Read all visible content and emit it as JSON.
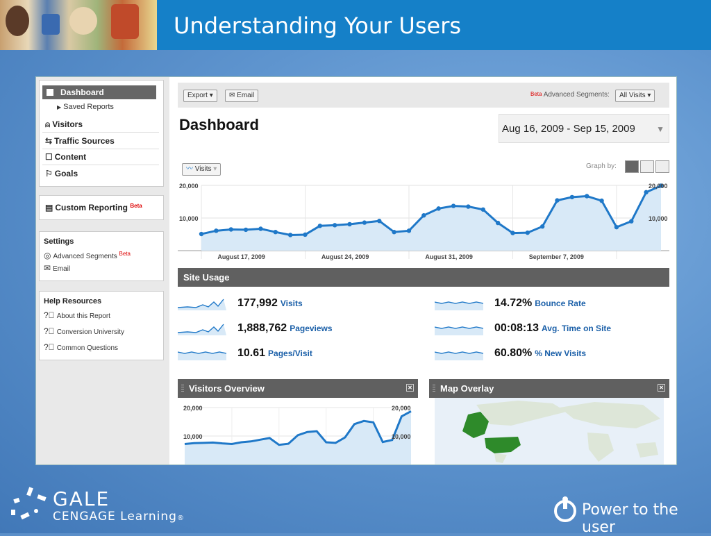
{
  "slide": {
    "title": "Understanding Your Users",
    "gale": "GALE",
    "cengage": "CENGAGE Learning",
    "cengage_tm": "®",
    "power": "Power to the user"
  },
  "sidebar": {
    "items": [
      {
        "label": "Dashboard",
        "icon": "dashboard-icon"
      },
      {
        "label": "Saved Reports",
        "icon": "triangle-right-icon"
      },
      {
        "label": "Visitors",
        "icon": "person-icon"
      },
      {
        "label": "Traffic Sources",
        "icon": "traffic-icon"
      },
      {
        "label": "Content",
        "icon": "page-icon"
      },
      {
        "label": "Goals",
        "icon": "flag-icon"
      }
    ],
    "custom_reporting": "Custom Reporting",
    "beta": "Beta",
    "settings_head": "Settings",
    "advanced_segments": "Advanced Segments",
    "email": "Email",
    "help_head": "Help Resources",
    "help_links": [
      "About this Report",
      "Conversion University",
      "Common Questions"
    ]
  },
  "toolbar": {
    "export": "Export",
    "email": "Email",
    "beta": "Beta",
    "adv_segments": "Advanced Segments:",
    "segment_value": "All Visits"
  },
  "dashboard": {
    "title": "Dashboard",
    "date_range": "Aug 16, 2009 - Sep 15, 2009",
    "metric_select": "Visits",
    "graph_by": "Graph by:"
  },
  "chart_data": [
    {
      "type": "area",
      "series": [
        {
          "name": "Visits",
          "values": [
            5100,
            6100,
            6500,
            6400,
            6700,
            5700,
            4800,
            4900,
            7600,
            7800,
            8100,
            8600,
            9100,
            5700,
            6100,
            10800,
            12900,
            13700,
            13500,
            12600,
            8500,
            5400,
            5500,
            7400,
            15400,
            16400,
            16700,
            15300,
            7200,
            9000,
            17900,
            19900
          ]
        }
      ],
      "ytick_labels": [
        "20,000",
        "10,000"
      ],
      "xtick_labels": [
        "August 17, 2009",
        "August 24, 2009",
        "August 31, 2009",
        "September 7, 2009"
      ],
      "ylim": [
        0,
        20000
      ],
      "grid": true
    },
    {
      "type": "area",
      "series": [
        {
          "name": "Visits",
          "values": [
            7200,
            7500,
            7600,
            7700,
            7400,
            7200,
            7800,
            8100,
            8700,
            9300,
            6900,
            7300,
            10300,
            11400,
            11700,
            7800,
            7600,
            9500,
            14200,
            15300,
            14800,
            7900,
            8600,
            16900,
            18700
          ]
        }
      ],
      "ytick_labels": [
        "20,000",
        "10,000"
      ],
      "ylim": [
        0,
        20000
      ],
      "grid": true
    }
  ],
  "site_usage": {
    "title": "Site Usage",
    "metrics": [
      {
        "value": "177,992",
        "label": "Visits"
      },
      {
        "value": "1,888,762",
        "label": "Pageviews"
      },
      {
        "value": "10.61",
        "label": "Pages/Visit"
      },
      {
        "value": "14.72%",
        "label": "Bounce Rate"
      },
      {
        "value": "00:08:13",
        "label": "Avg. Time on Site"
      },
      {
        "value": "60.80%",
        "label": "% New Visits"
      }
    ]
  },
  "panels": {
    "visitors_overview": "Visitors Overview",
    "map_overlay": "Map Overlay"
  },
  "colors": {
    "line": "#1f78c8",
    "fill": "#d8e9f7",
    "map": "#2e8a2a"
  }
}
